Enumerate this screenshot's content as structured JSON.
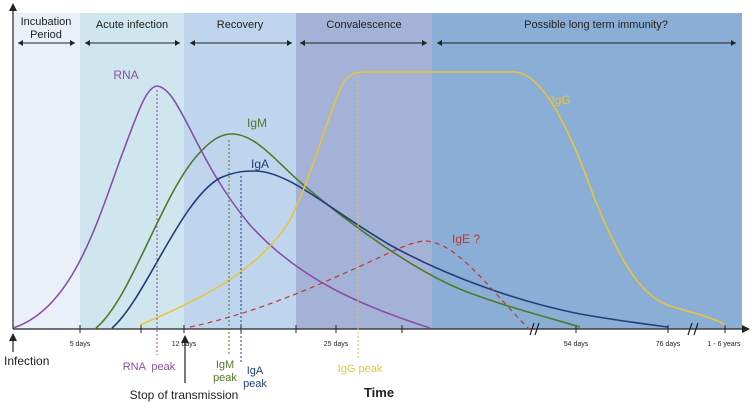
{
  "phases": [
    {
      "label_lines": [
        "Incubation",
        "Period"
      ],
      "color": "#eaf0f8"
    },
    {
      "label_lines": [
        "Acute infection"
      ],
      "color": "#cfe6ee"
    },
    {
      "label_lines": [
        "Recovery"
      ],
      "color": "#bfd5ee"
    },
    {
      "label_lines": [
        "Convalescence"
      ],
      "color": "#a5b2d8"
    },
    {
      "label_lines": [
        "Possible long term immunity?"
      ],
      "color": "#8aaed6"
    }
  ],
  "x_ticks": [
    "5 days",
    "12 days",
    "25 days",
    "54 days",
    "76 days",
    "1 - 6 years"
  ],
  "curves": {
    "rna": {
      "label": "RNA",
      "color": "#8b4fa8"
    },
    "igm": {
      "label": "IgM",
      "color": "#4f7a28"
    },
    "iga": {
      "label": "IgA",
      "color": "#1f3f7a"
    },
    "igg": {
      "label": "IgG",
      "color": "#e8c43a"
    },
    "ige": {
      "label": "IgE ?",
      "color": "#c0392b"
    }
  },
  "peaks": {
    "rna": "RNA  peak",
    "igm": [
      "IgM",
      "peak"
    ],
    "iga": [
      "IgA",
      "peak"
    ],
    "igg": "IgG peak"
  },
  "annotations": {
    "infection": "Infection",
    "stop_transmission": "Stop of transmission",
    "x_axis_title": "Time"
  }
}
